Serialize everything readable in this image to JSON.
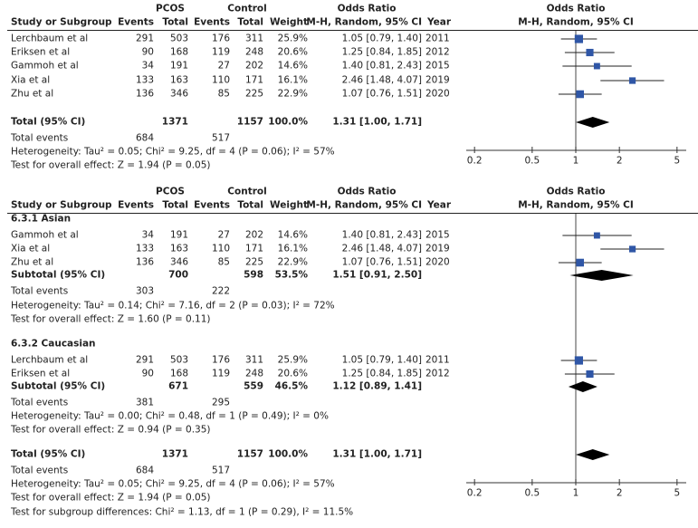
{
  "chart_data": {
    "type": "forest",
    "scale": "log",
    "xlim": [
      0.2,
      5
    ],
    "xticks": [
      "0.2",
      "0.5",
      "1",
      "2",
      "5"
    ],
    "xtick_values": [
      0.2,
      0.5,
      1,
      2,
      5
    ],
    "square_color": "#2f56a6",
    "header": {
      "study": "Study or Subgroup",
      "pcos": "PCOS",
      "control": "Control",
      "events": "Events",
      "total": "Total",
      "weight": "Weight",
      "or_title": "Odds Ratio",
      "or_method": "M-H, Random, 95% CI",
      "year": "Year",
      "plot_title": "Odds Ratio",
      "plot_method": "M-H, Random, 95% CI"
    },
    "panels": [
      {
        "rows": [
          {
            "kind": "study",
            "name": "Lerchbaum et al",
            "pe": "291",
            "pt": "503",
            "ce": "176",
            "ct": "311",
            "weight": "25.9%",
            "ci_text": "1.05 [0.79, 1.40]",
            "year": "2011",
            "or": 1.05,
            "lo": 0.79,
            "hi": 1.4,
            "w": 25.9
          },
          {
            "kind": "study",
            "name": "Eriksen et al",
            "pe": "90",
            "pt": "168",
            "ce": "119",
            "ct": "248",
            "weight": "20.6%",
            "ci_text": "1.25 [0.84, 1.85]",
            "year": "2012",
            "or": 1.25,
            "lo": 0.84,
            "hi": 1.85,
            "w": 20.6
          },
          {
            "kind": "study",
            "name": "Gammoh et al",
            "pe": "34",
            "pt": "191",
            "ce": "27",
            "ct": "202",
            "weight": "14.6%",
            "ci_text": "1.40 [0.81, 2.43]",
            "year": "2015",
            "or": 1.4,
            "lo": 0.81,
            "hi": 2.43,
            "w": 14.6
          },
          {
            "kind": "study",
            "name": "Xia et al",
            "pe": "133",
            "pt": "163",
            "ce": "110",
            "ct": "171",
            "weight": "16.1%",
            "ci_text": "2.46 [1.48, 4.07]",
            "year": "2019",
            "or": 2.46,
            "lo": 1.48,
            "hi": 4.07,
            "w": 16.1
          },
          {
            "kind": "study",
            "name": "Zhu et al",
            "pe": "136",
            "pt": "346",
            "ce": "85",
            "ct": "225",
            "weight": "22.9%",
            "ci_text": "1.07 [0.76, 1.51]",
            "year": "2020",
            "or": 1.07,
            "lo": 0.76,
            "hi": 1.51,
            "w": 22.9
          },
          {
            "kind": "total",
            "name": "Total (95% CI)",
            "pt": "1371",
            "ct": "1157",
            "weight": "100.0%",
            "ci_text": "1.31 [1.00, 1.71]",
            "or": 1.31,
            "lo": 1.0,
            "hi": 1.71
          },
          {
            "kind": "events",
            "name": "Total events",
            "pe": "684",
            "ce": "517"
          },
          {
            "kind": "text",
            "name": "Heterogeneity: Tau² = 0.05; Chi² = 9.25, df = 4 (P = 0.06); I² = 57%"
          },
          {
            "kind": "text",
            "name": "Test for overall effect: Z = 1.94 (P = 0.05)"
          }
        ]
      },
      {
        "rows": [
          {
            "kind": "group",
            "name": "6.3.1 Asian"
          },
          {
            "kind": "study",
            "name": "Gammoh et al",
            "pe": "34",
            "pt": "191",
            "ce": "27",
            "ct": "202",
            "weight": "14.6%",
            "ci_text": "1.40 [0.81, 2.43]",
            "year": "2015",
            "or": 1.4,
            "lo": 0.81,
            "hi": 2.43,
            "w": 14.6
          },
          {
            "kind": "study",
            "name": "Xia et al",
            "pe": "133",
            "pt": "163",
            "ce": "110",
            "ct": "171",
            "weight": "16.1%",
            "ci_text": "2.46 [1.48, 4.07]",
            "year": "2019",
            "or": 2.46,
            "lo": 1.48,
            "hi": 4.07,
            "w": 16.1
          },
          {
            "kind": "study",
            "name": "Zhu et al",
            "pe": "136",
            "pt": "346",
            "ce": "85",
            "ct": "225",
            "weight": "22.9%",
            "ci_text": "1.07 [0.76, 1.51]",
            "year": "2020",
            "or": 1.07,
            "lo": 0.76,
            "hi": 1.51,
            "w": 22.9
          },
          {
            "kind": "total",
            "name": "Subtotal (95% CI)",
            "pt": "700",
            "ct": "598",
            "weight": "53.5%",
            "ci_text": "1.51 [0.91, 2.50]",
            "or": 1.51,
            "lo": 0.91,
            "hi": 2.5
          },
          {
            "kind": "events",
            "name": "Total events",
            "pe": "303",
            "ce": "222"
          },
          {
            "kind": "text",
            "name": "Heterogeneity: Tau² = 0.14; Chi² = 7.16, df = 2 (P = 0.03); I² = 72%"
          },
          {
            "kind": "text",
            "name": "Test for overall effect: Z = 1.60 (P = 0.11)"
          },
          {
            "kind": "group",
            "name": "6.3.2 Caucasian"
          },
          {
            "kind": "study",
            "name": "Lerchbaum et al",
            "pe": "291",
            "pt": "503",
            "ce": "176",
            "ct": "311",
            "weight": "25.9%",
            "ci_text": "1.05 [0.79, 1.40]",
            "year": "2011",
            "or": 1.05,
            "lo": 0.79,
            "hi": 1.4,
            "w": 25.9
          },
          {
            "kind": "study",
            "name": "Eriksen et al",
            "pe": "90",
            "pt": "168",
            "ce": "119",
            "ct": "248",
            "weight": "20.6%",
            "ci_text": "1.25 [0.84, 1.85]",
            "year": "2012",
            "or": 1.25,
            "lo": 0.84,
            "hi": 1.85,
            "w": 20.6
          },
          {
            "kind": "total",
            "name": "Subtotal (95% CI)",
            "pt": "671",
            "ct": "559",
            "weight": "46.5%",
            "ci_text": "1.12 [0.89, 1.41]",
            "or": 1.12,
            "lo": 0.89,
            "hi": 1.41
          },
          {
            "kind": "events",
            "name": "Total events",
            "pe": "381",
            "ce": "295"
          },
          {
            "kind": "text",
            "name": "Heterogeneity: Tau² = 0.00; Chi² = 0.48, df = 1 (P = 0.49); I² = 0%"
          },
          {
            "kind": "text",
            "name": "Test for overall effect: Z = 0.94 (P = 0.35)"
          },
          {
            "kind": "total",
            "name": "Total (95% CI)",
            "pt": "1371",
            "ct": "1157",
            "weight": "100.0%",
            "ci_text": "1.31 [1.00, 1.71]",
            "or": 1.31,
            "lo": 1.0,
            "hi": 1.71
          },
          {
            "kind": "events",
            "name": "Total events",
            "pe": "684",
            "ce": "517"
          },
          {
            "kind": "text",
            "name": "Heterogeneity: Tau² = 0.05; Chi² = 9.25, df = 4 (P = 0.06); I² = 57%"
          },
          {
            "kind": "text",
            "name": "Test for overall effect: Z = 1.94 (P = 0.05)"
          },
          {
            "kind": "text",
            "name": "Test for subgroup differences: Chi² = 1.13, df = 1 (P = 0.29), I² = 11.5%"
          }
        ]
      }
    ]
  }
}
